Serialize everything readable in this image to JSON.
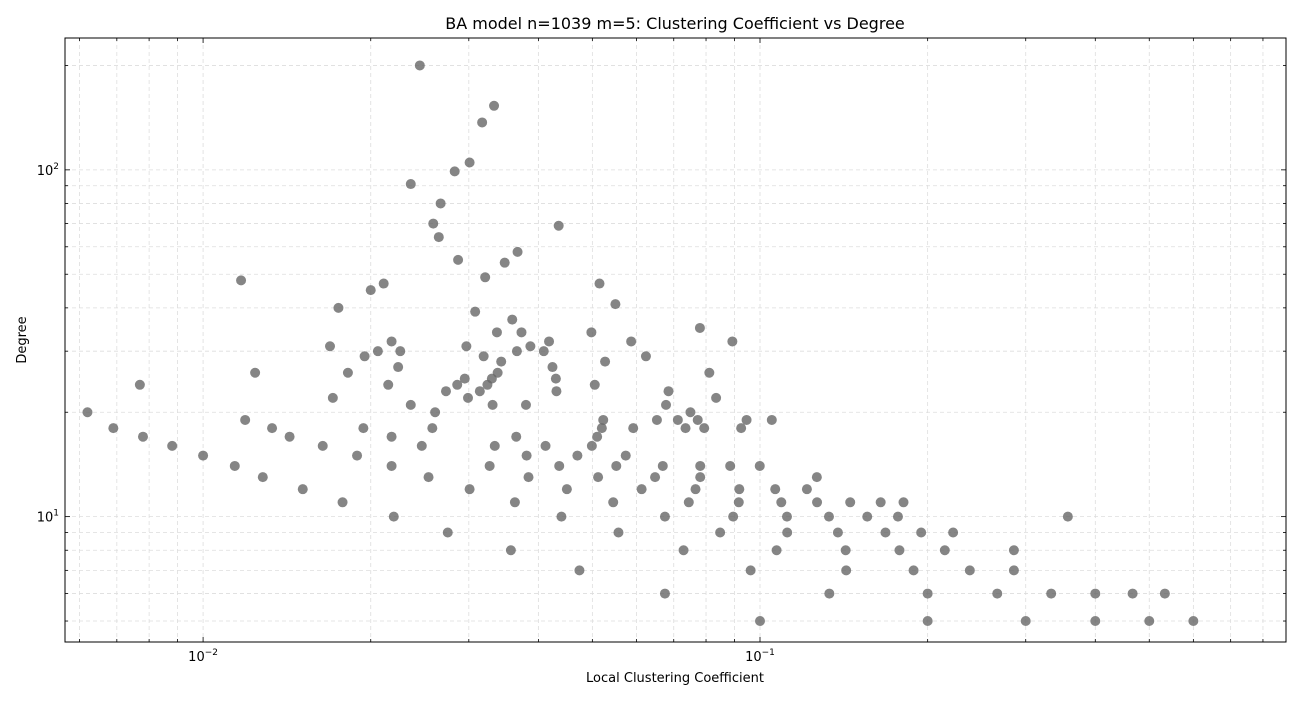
{
  "chart_data": {
    "type": "scatter",
    "title": "BA model n=1039 m=5: Clustering Coefficient vs Degree",
    "xlabel": "Local Clustering Coefficient",
    "ylabel": "Degree",
    "xscale": "log",
    "yscale": "log",
    "xlim": [
      0.00565,
      0.88
    ],
    "ylim": [
      4.35,
      240
    ],
    "grid": true,
    "marker_color": "#666666",
    "x_ticks": [
      {
        "value": 0.01,
        "base": "10",
        "exp": "−2"
      },
      {
        "value": 0.1,
        "base": "10",
        "exp": "−1"
      }
    ],
    "y_ticks": [
      {
        "value": 10,
        "base": "10",
        "exp": "1"
      },
      {
        "value": 100,
        "base": "10",
        "exp": "2"
      }
    ],
    "points": [
      [
        0.0062,
        20
      ],
      [
        0.0069,
        18
      ],
      [
        0.0077,
        24
      ],
      [
        0.0078,
        17
      ],
      [
        0.0088,
        16
      ],
      [
        0.01,
        15
      ],
      [
        0.0114,
        14
      ],
      [
        0.0117,
        48
      ],
      [
        0.0119,
        19
      ],
      [
        0.0124,
        26
      ],
      [
        0.0128,
        13
      ],
      [
        0.0133,
        18
      ],
      [
        0.0143,
        17
      ],
      [
        0.0151,
        12
      ],
      [
        0.0164,
        16
      ],
      [
        0.0169,
        31
      ],
      [
        0.0171,
        22
      ],
      [
        0.0175,
        40
      ],
      [
        0.0178,
        11
      ],
      [
        0.0182,
        26
      ],
      [
        0.0189,
        15
      ],
      [
        0.0194,
        18
      ],
      [
        0.0195,
        29
      ],
      [
        0.02,
        45
      ],
      [
        0.0206,
        30
      ],
      [
        0.0211,
        47
      ],
      [
        0.0215,
        24
      ],
      [
        0.0218,
        32
      ],
      [
        0.0218,
        17
      ],
      [
        0.0218,
        14
      ],
      [
        0.022,
        10
      ],
      [
        0.0224,
        27
      ],
      [
        0.0226,
        30
      ],
      [
        0.0236,
        21
      ],
      [
        0.0236,
        91
      ],
      [
        0.0245,
        200
      ],
      [
        0.0247,
        16
      ],
      [
        0.0254,
        13
      ],
      [
        0.0258,
        18
      ],
      [
        0.0259,
        70
      ],
      [
        0.0261,
        20
      ],
      [
        0.0265,
        64
      ],
      [
        0.0267,
        80
      ],
      [
        0.0273,
        23
      ],
      [
        0.0275,
        9
      ],
      [
        0.0283,
        99
      ],
      [
        0.0286,
        24
      ],
      [
        0.0287,
        55
      ],
      [
        0.0295,
        25
      ],
      [
        0.0297,
        31
      ],
      [
        0.0299,
        22
      ],
      [
        0.0301,
        105
      ],
      [
        0.0301,
        12
      ],
      [
        0.0308,
        39
      ],
      [
        0.0314,
        23
      ],
      [
        0.0317,
        137
      ],
      [
        0.0319,
        29
      ],
      [
        0.0321,
        49
      ],
      [
        0.0324,
        24
      ],
      [
        0.0327,
        14
      ],
      [
        0.033,
        25
      ],
      [
        0.0331,
        21
      ],
      [
        0.0333,
        153
      ],
      [
        0.0334,
        16
      ],
      [
        0.0337,
        34
      ],
      [
        0.0338,
        26
      ],
      [
        0.0343,
        28
      ],
      [
        0.0348,
        54
      ],
      [
        0.0357,
        8
      ],
      [
        0.0359,
        37
      ],
      [
        0.0363,
        11
      ],
      [
        0.0365,
        17
      ],
      [
        0.0366,
        30
      ],
      [
        0.0367,
        58
      ],
      [
        0.0373,
        34
      ],
      [
        0.038,
        21
      ],
      [
        0.0381,
        15
      ],
      [
        0.0384,
        13
      ],
      [
        0.0387,
        31
      ],
      [
        0.0409,
        30
      ],
      [
        0.0412,
        16
      ],
      [
        0.0418,
        32
      ],
      [
        0.0424,
        27
      ],
      [
        0.043,
        25
      ],
      [
        0.0431,
        23
      ],
      [
        0.0435,
        69
      ],
      [
        0.0436,
        14
      ],
      [
        0.044,
        10
      ],
      [
        0.045,
        12
      ],
      [
        0.047,
        15
      ],
      [
        0.0474,
        7
      ],
      [
        0.0498,
        34
      ],
      [
        0.0499,
        16
      ],
      [
        0.0505,
        24
      ],
      [
        0.051,
        17
      ],
      [
        0.0512,
        13
      ],
      [
        0.0515,
        47
      ],
      [
        0.052,
        18
      ],
      [
        0.0523,
        19
      ],
      [
        0.0527,
        28
      ],
      [
        0.0545,
        11
      ],
      [
        0.055,
        41
      ],
      [
        0.0552,
        14
      ],
      [
        0.0557,
        9
      ],
      [
        0.0574,
        15
      ],
      [
        0.0587,
        32
      ],
      [
        0.0592,
        18
      ],
      [
        0.0613,
        12
      ],
      [
        0.0624,
        29
      ],
      [
        0.0648,
        13
      ],
      [
        0.0653,
        19
      ],
      [
        0.0669,
        14
      ],
      [
        0.0675,
        10
      ],
      [
        0.0675,
        6
      ],
      [
        0.0678,
        21
      ],
      [
        0.0685,
        23
      ],
      [
        0.0712,
        19
      ],
      [
        0.0729,
        8
      ],
      [
        0.0735,
        18
      ],
      [
        0.0745,
        11
      ],
      [
        0.075,
        20
      ],
      [
        0.0766,
        12
      ],
      [
        0.0773,
        19
      ],
      [
        0.078,
        35
      ],
      [
        0.0781,
        14
      ],
      [
        0.0781,
        13
      ],
      [
        0.0794,
        18
      ],
      [
        0.0811,
        26
      ],
      [
        0.0834,
        22
      ],
      [
        0.0848,
        9
      ],
      [
        0.0884,
        14
      ],
      [
        0.0892,
        32
      ],
      [
        0.0895,
        10
      ],
      [
        0.0916,
        11
      ],
      [
        0.0918,
        12
      ],
      [
        0.0925,
        18
      ],
      [
        0.0946,
        19
      ],
      [
        0.0962,
        7
      ],
      [
        0.0999,
        14
      ],
      [
        0.1,
        5
      ],
      [
        0.105,
        19
      ],
      [
        0.1065,
        12
      ],
      [
        0.1071,
        8
      ],
      [
        0.1092,
        11
      ],
      [
        0.1118,
        10
      ],
      [
        0.1119,
        9
      ],
      [
        0.1214,
        12
      ],
      [
        0.1265,
        13
      ],
      [
        0.1266,
        11
      ],
      [
        0.133,
        10
      ],
      [
        0.1332,
        6
      ],
      [
        0.138,
        9
      ],
      [
        0.1425,
        8
      ],
      [
        0.1428,
        7
      ],
      [
        0.1452,
        11
      ],
      [
        0.1558,
        10
      ],
      [
        0.1647,
        11
      ],
      [
        0.168,
        9
      ],
      [
        0.1769,
        10
      ],
      [
        0.178,
        8
      ],
      [
        0.181,
        11
      ],
      [
        0.1887,
        7
      ],
      [
        0.1947,
        9
      ],
      [
        0.2,
        6
      ],
      [
        0.2,
        5
      ],
      [
        0.2147,
        8
      ],
      [
        0.2222,
        9
      ],
      [
        0.2381,
        7
      ],
      [
        0.2667,
        6
      ],
      [
        0.2857,
        8
      ],
      [
        0.2857,
        7
      ],
      [
        0.3,
        5
      ],
      [
        0.3333,
        6
      ],
      [
        0.3571,
        10
      ],
      [
        0.4,
        6
      ],
      [
        0.4,
        5
      ],
      [
        0.4667,
        6
      ],
      [
        0.5,
        5
      ],
      [
        0.5333,
        6
      ],
      [
        0.6,
        5
      ]
    ]
  }
}
